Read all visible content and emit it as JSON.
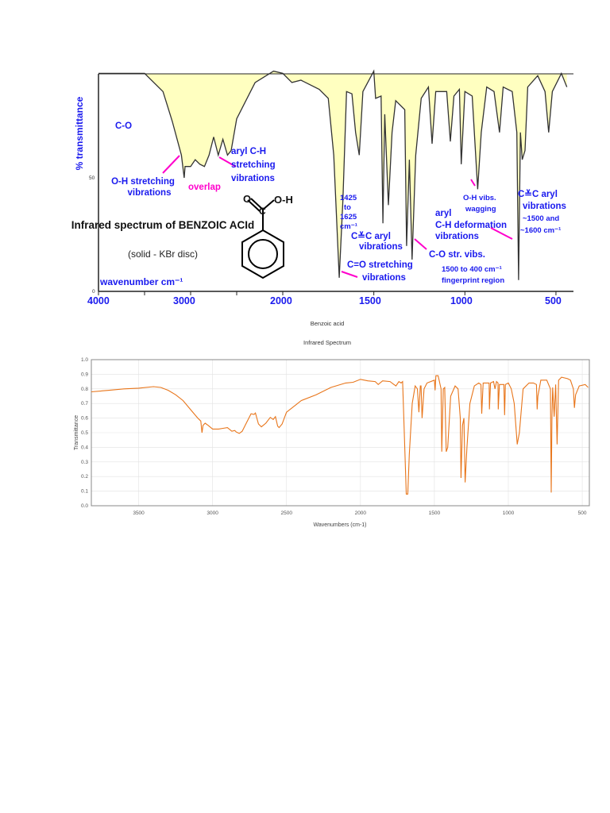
{
  "chart_data": [
    {
      "type": "line",
      "title": "Infrared spectrum of BENZOIC ACId",
      "subtitle": "(solid - KBr disc)",
      "xlabel": "wavenumber  cm⁻¹",
      "ylabel": "% transmittance",
      "xlim": [
        4000,
        440
      ],
      "ylim": [
        0,
        100
      ],
      "x_ticks": [
        "4000",
        "3000",
        "2000",
        "1500",
        "1000",
        "500"
      ],
      "y_ticks": [
        "50",
        "0"
      ],
      "fill_color": "#ffffc0",
      "line_color": "#333333",
      "annotation_color": "#1a1aee",
      "pointer_color": "#ff00cc",
      "annotations": {
        "co": "C-O",
        "oh1": "O-H stretching",
        "oh2": "vibrations",
        "overlap": "overlap",
        "arylch1": "aryl C-H",
        "arylch2": "stretching",
        "arylch3": "vibrations",
        "range1": "1425",
        "range2": "to",
        "range3": "1625",
        "range4": "cm⁻¹",
        "cc1": "C≚C aryl",
        "cc2": "vibrations",
        "co_str1": "C=O stretching",
        "co_str2": "vibrations",
        "co_vibs": "C-O str. vibs.",
        "aryl_def1": "aryl",
        "aryl_def2": "C-H deformation",
        "aryl_def3": "vibrations",
        "oh_wag1": "O-H vibs.",
        "oh_wag2": "wagging",
        "finger1": "1500 to 400 cm⁻¹",
        "finger2": "fingerprint region",
        "cc_r1": "C≚C aryl",
        "cc_r2": "vibrations",
        "cc_r3": "~1500 and",
        "cc_r4": "~1600 cm⁻¹",
        "molecule": "O=C-O-H"
      },
      "x": [
        4000,
        3500,
        3300,
        3200,
        3100,
        3070,
        3060,
        3000,
        2950,
        2900,
        2850,
        2800,
        2750,
        2700,
        2650,
        2600,
        2560,
        2500,
        2300,
        2100,
        2000,
        1950,
        1900,
        1800,
        1750,
        1720,
        1690,
        1670,
        1650,
        1620,
        1600,
        1580,
        1560,
        1500,
        1490,
        1460,
        1450,
        1440,
        1420,
        1400,
        1380,
        1330,
        1320,
        1305,
        1290,
        1270,
        1240,
        1200,
        1180,
        1160,
        1130,
        1100,
        1080,
        1060,
        1030,
        1020,
        1000,
        960,
        930,
        910,
        880,
        840,
        810,
        790,
        740,
        715,
        705,
        695,
        685,
        670,
        655,
        600,
        560,
        540,
        520,
        470,
        440
      ],
      "y": [
        96,
        96,
        88,
        75,
        60,
        50,
        55,
        55,
        58,
        56,
        55,
        60,
        68,
        60,
        67,
        60,
        62,
        76,
        92,
        97,
        96,
        92,
        93,
        89,
        85,
        60,
        6,
        40,
        88,
        87,
        70,
        60,
        88,
        97,
        85,
        86,
        30,
        78,
        38,
        70,
        84,
        80,
        20,
        58,
        14,
        60,
        85,
        90,
        65,
        88,
        88,
        88,
        66,
        86,
        89,
        56,
        88,
        86,
        45,
        70,
        90,
        88,
        70,
        90,
        88,
        70,
        5,
        70,
        58,
        62,
        90,
        95,
        88,
        70,
        88,
        96,
        90
      ]
    },
    {
      "type": "line",
      "title": "Benzoic acid",
      "subtitle": "Infrared Spectrum",
      "xlabel": "Wavenumbers (cm-1)",
      "ylabel": "Transmittance",
      "xlim": [
        3820,
        452
      ],
      "ylim": [
        0,
        1
      ],
      "grid": true,
      "line_color": "#e8751a",
      "x_ticks": [
        "3500",
        "3000",
        "2500",
        "2000",
        "1500",
        "1000",
        "500"
      ],
      "y_ticks": [
        "0.0",
        "0.1",
        "0.2",
        "0.3",
        "0.4",
        "0.5",
        "0.6",
        "0.7",
        "0.8",
        "0.9",
        "1.0"
      ],
      "x": [
        3820,
        3700,
        3600,
        3500,
        3400,
        3350,
        3300,
        3250,
        3200,
        3150,
        3100,
        3080,
        3072,
        3065,
        3050,
        3030,
        3000,
        2960,
        2930,
        2900,
        2870,
        2850,
        2840,
        2820,
        2800,
        2770,
        2740,
        2720,
        2710,
        2690,
        2670,
        2640,
        2610,
        2590,
        2575,
        2560,
        2550,
        2530,
        2500,
        2400,
        2300,
        2200,
        2100,
        2050,
        2000,
        1950,
        1900,
        1880,
        1850,
        1800,
        1780,
        1760,
        1740,
        1725,
        1715,
        1705,
        1690,
        1680,
        1670,
        1650,
        1630,
        1615,
        1605,
        1595,
        1590,
        1583,
        1570,
        1550,
        1500,
        1495,
        1490,
        1475,
        1455,
        1450,
        1440,
        1430,
        1420,
        1410,
        1390,
        1360,
        1340,
        1325,
        1320,
        1310,
        1300,
        1292,
        1280,
        1260,
        1230,
        1200,
        1185,
        1180,
        1170,
        1130,
        1128,
        1120,
        1100,
        1090,
        1080,
        1070,
        1068,
        1060,
        1030,
        1025,
        1020,
        1000,
        980,
        960,
        940,
        925,
        900,
        860,
        830,
        810,
        805,
        800,
        780,
        740,
        715,
        710,
        705,
        700,
        690,
        680,
        670,
        660,
        640,
        600,
        580,
        560,
        553,
        545,
        520,
        480,
        460
      ],
      "y": [
        0.78,
        0.79,
        0.8,
        0.805,
        0.815,
        0.81,
        0.79,
        0.76,
        0.72,
        0.66,
        0.6,
        0.58,
        0.5,
        0.55,
        0.565,
        0.55,
        0.525,
        0.525,
        0.53,
        0.535,
        0.51,
        0.515,
        0.505,
        0.495,
        0.51,
        0.57,
        0.63,
        0.625,
        0.635,
        0.56,
        0.54,
        0.565,
        0.605,
        0.59,
        0.61,
        0.545,
        0.535,
        0.56,
        0.64,
        0.72,
        0.76,
        0.81,
        0.84,
        0.845,
        0.865,
        0.855,
        0.85,
        0.83,
        0.855,
        0.85,
        0.835,
        0.82,
        0.85,
        0.84,
        0.85,
        0.55,
        0.08,
        0.08,
        0.35,
        0.7,
        0.82,
        0.8,
        0.64,
        0.82,
        0.82,
        0.6,
        0.8,
        0.84,
        0.86,
        0.79,
        0.89,
        0.89,
        0.8,
        0.37,
        0.8,
        0.81,
        0.37,
        0.4,
        0.75,
        0.82,
        0.8,
        0.6,
        0.19,
        0.55,
        0.6,
        0.16,
        0.4,
        0.7,
        0.82,
        0.84,
        0.83,
        0.63,
        0.84,
        0.84,
        0.66,
        0.84,
        0.85,
        0.8,
        0.85,
        0.84,
        0.66,
        0.83,
        0.83,
        0.62,
        0.83,
        0.84,
        0.8,
        0.7,
        0.42,
        0.5,
        0.8,
        0.84,
        0.84,
        0.83,
        0.66,
        0.75,
        0.86,
        0.86,
        0.8,
        0.09,
        0.6,
        0.81,
        0.61,
        0.83,
        0.42,
        0.86,
        0.88,
        0.87,
        0.86,
        0.8,
        0.67,
        0.76,
        0.82,
        0.83,
        0.81
      ]
    }
  ]
}
